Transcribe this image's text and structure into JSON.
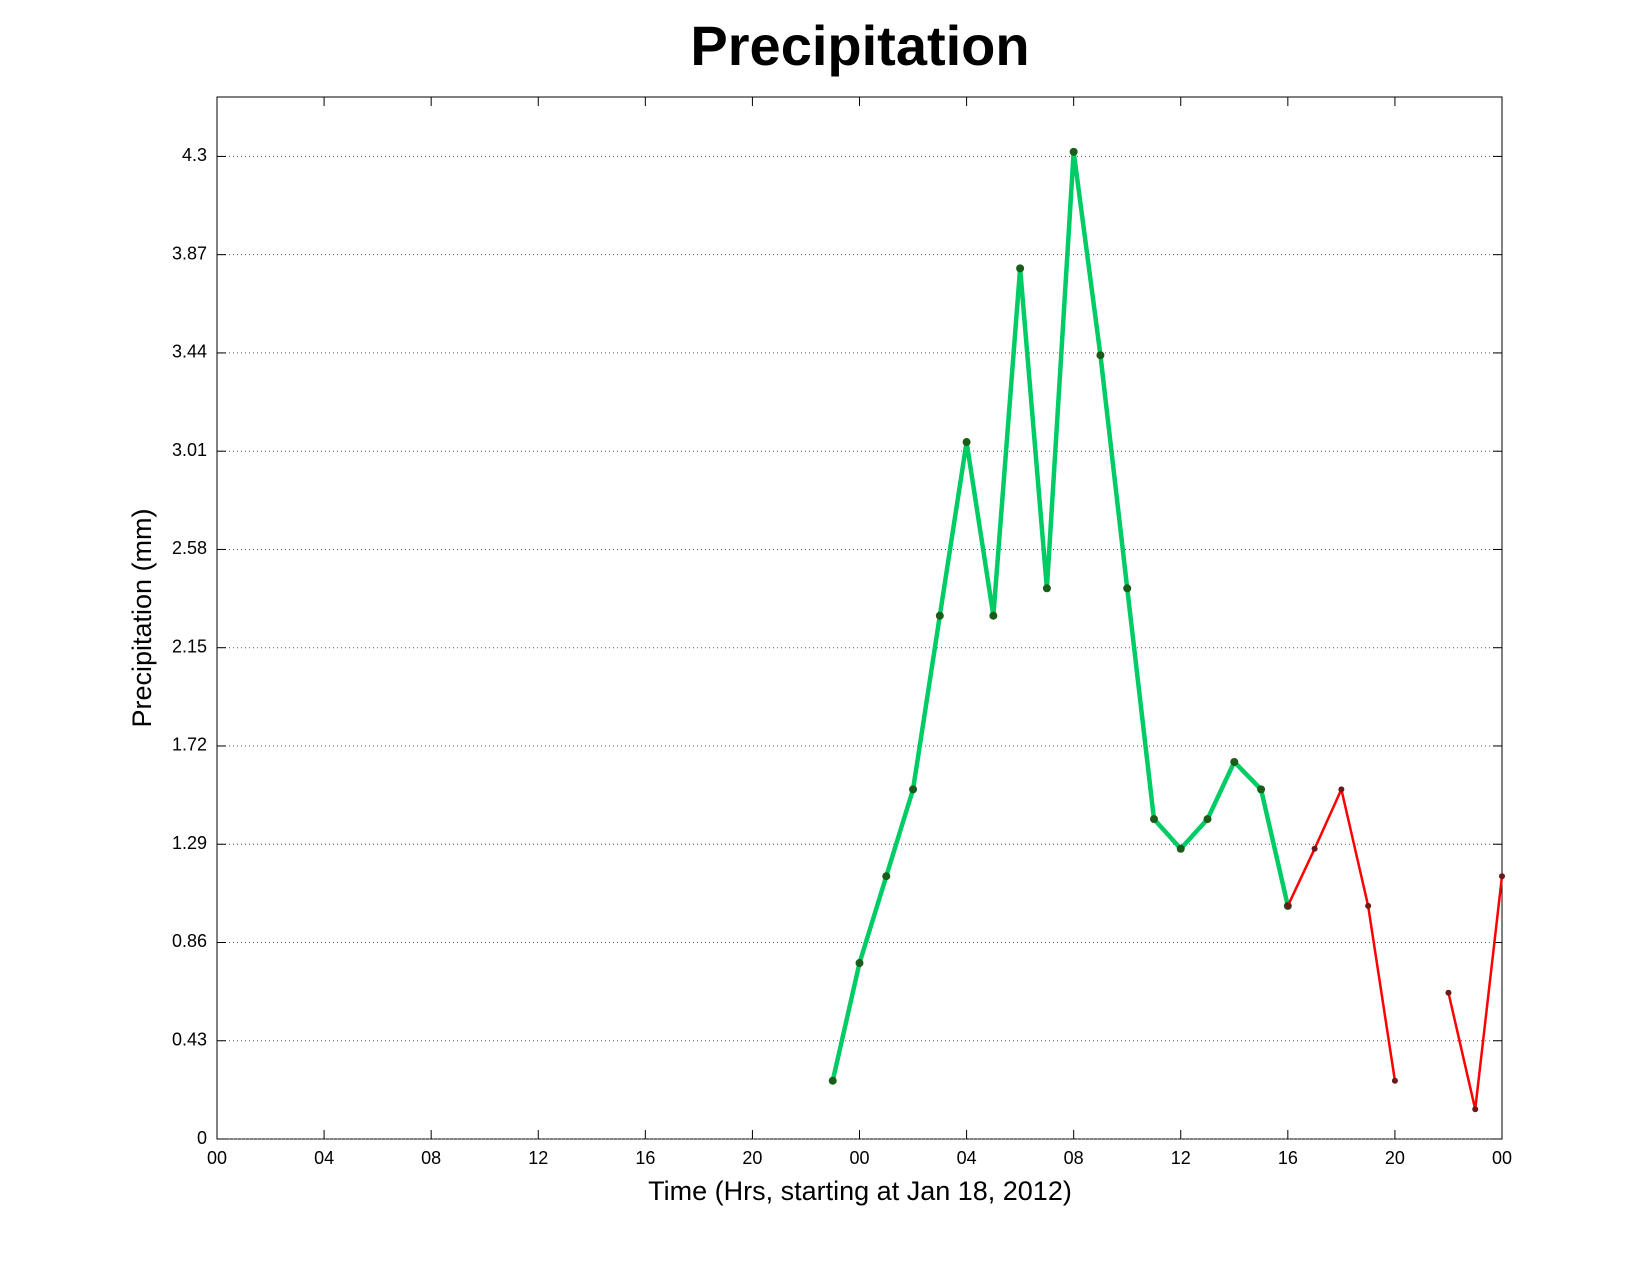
{
  "chart_data": {
    "type": "line",
    "title": "Precipitation",
    "xlabel": "Time (Hrs, starting at Jan 18, 2012)",
    "ylabel": "Precipitation (mm)",
    "xlim": [
      0,
      48
    ],
    "ylim": [
      0,
      4.56
    ],
    "xticks": [
      {
        "value": 0,
        "label": "00"
      },
      {
        "value": 4,
        "label": "04"
      },
      {
        "value": 8,
        "label": "08"
      },
      12,
      16,
      20,
      {
        "value": 24,
        "label": "00"
      },
      {
        "value": 28,
        "label": "04"
      },
      {
        "value": 32,
        "label": "08"
      },
      {
        "value": 36,
        "label": "12"
      },
      {
        "value": 40,
        "label": "16"
      },
      {
        "value": 44,
        "label": "20"
      },
      {
        "value": 48,
        "label": "00"
      }
    ],
    "yticks": [
      0,
      0.43,
      0.86,
      1.29,
      1.72,
      2.15,
      2.58,
      3.01,
      3.44,
      3.87,
      4.3
    ],
    "grid": true,
    "series": [
      {
        "color": "#00cc66",
        "marker_color": "#1a5c1a",
        "x": [
          23,
          24,
          25,
          26,
          27,
          28,
          29,
          30,
          31,
          32,
          33,
          34,
          35,
          36,
          37,
          38,
          39,
          40
        ],
        "values": [
          0.255,
          0.77,
          1.15,
          1.53,
          2.29,
          3.05,
          2.29,
          3.81,
          2.41,
          4.32,
          3.43,
          2.41,
          1.4,
          1.27,
          1.4,
          1.65,
          1.53,
          1.02
        ]
      },
      {
        "color": "#ff0000",
        "marker_color": "#6b1a1a",
        "x": [
          40,
          41,
          42,
          43,
          44,
          45,
          46,
          47,
          48
        ],
        "values": [
          1.02,
          1.27,
          1.53,
          1.02,
          0.255,
          null,
          0.64,
          0.13,
          1.15
        ]
      }
    ]
  }
}
